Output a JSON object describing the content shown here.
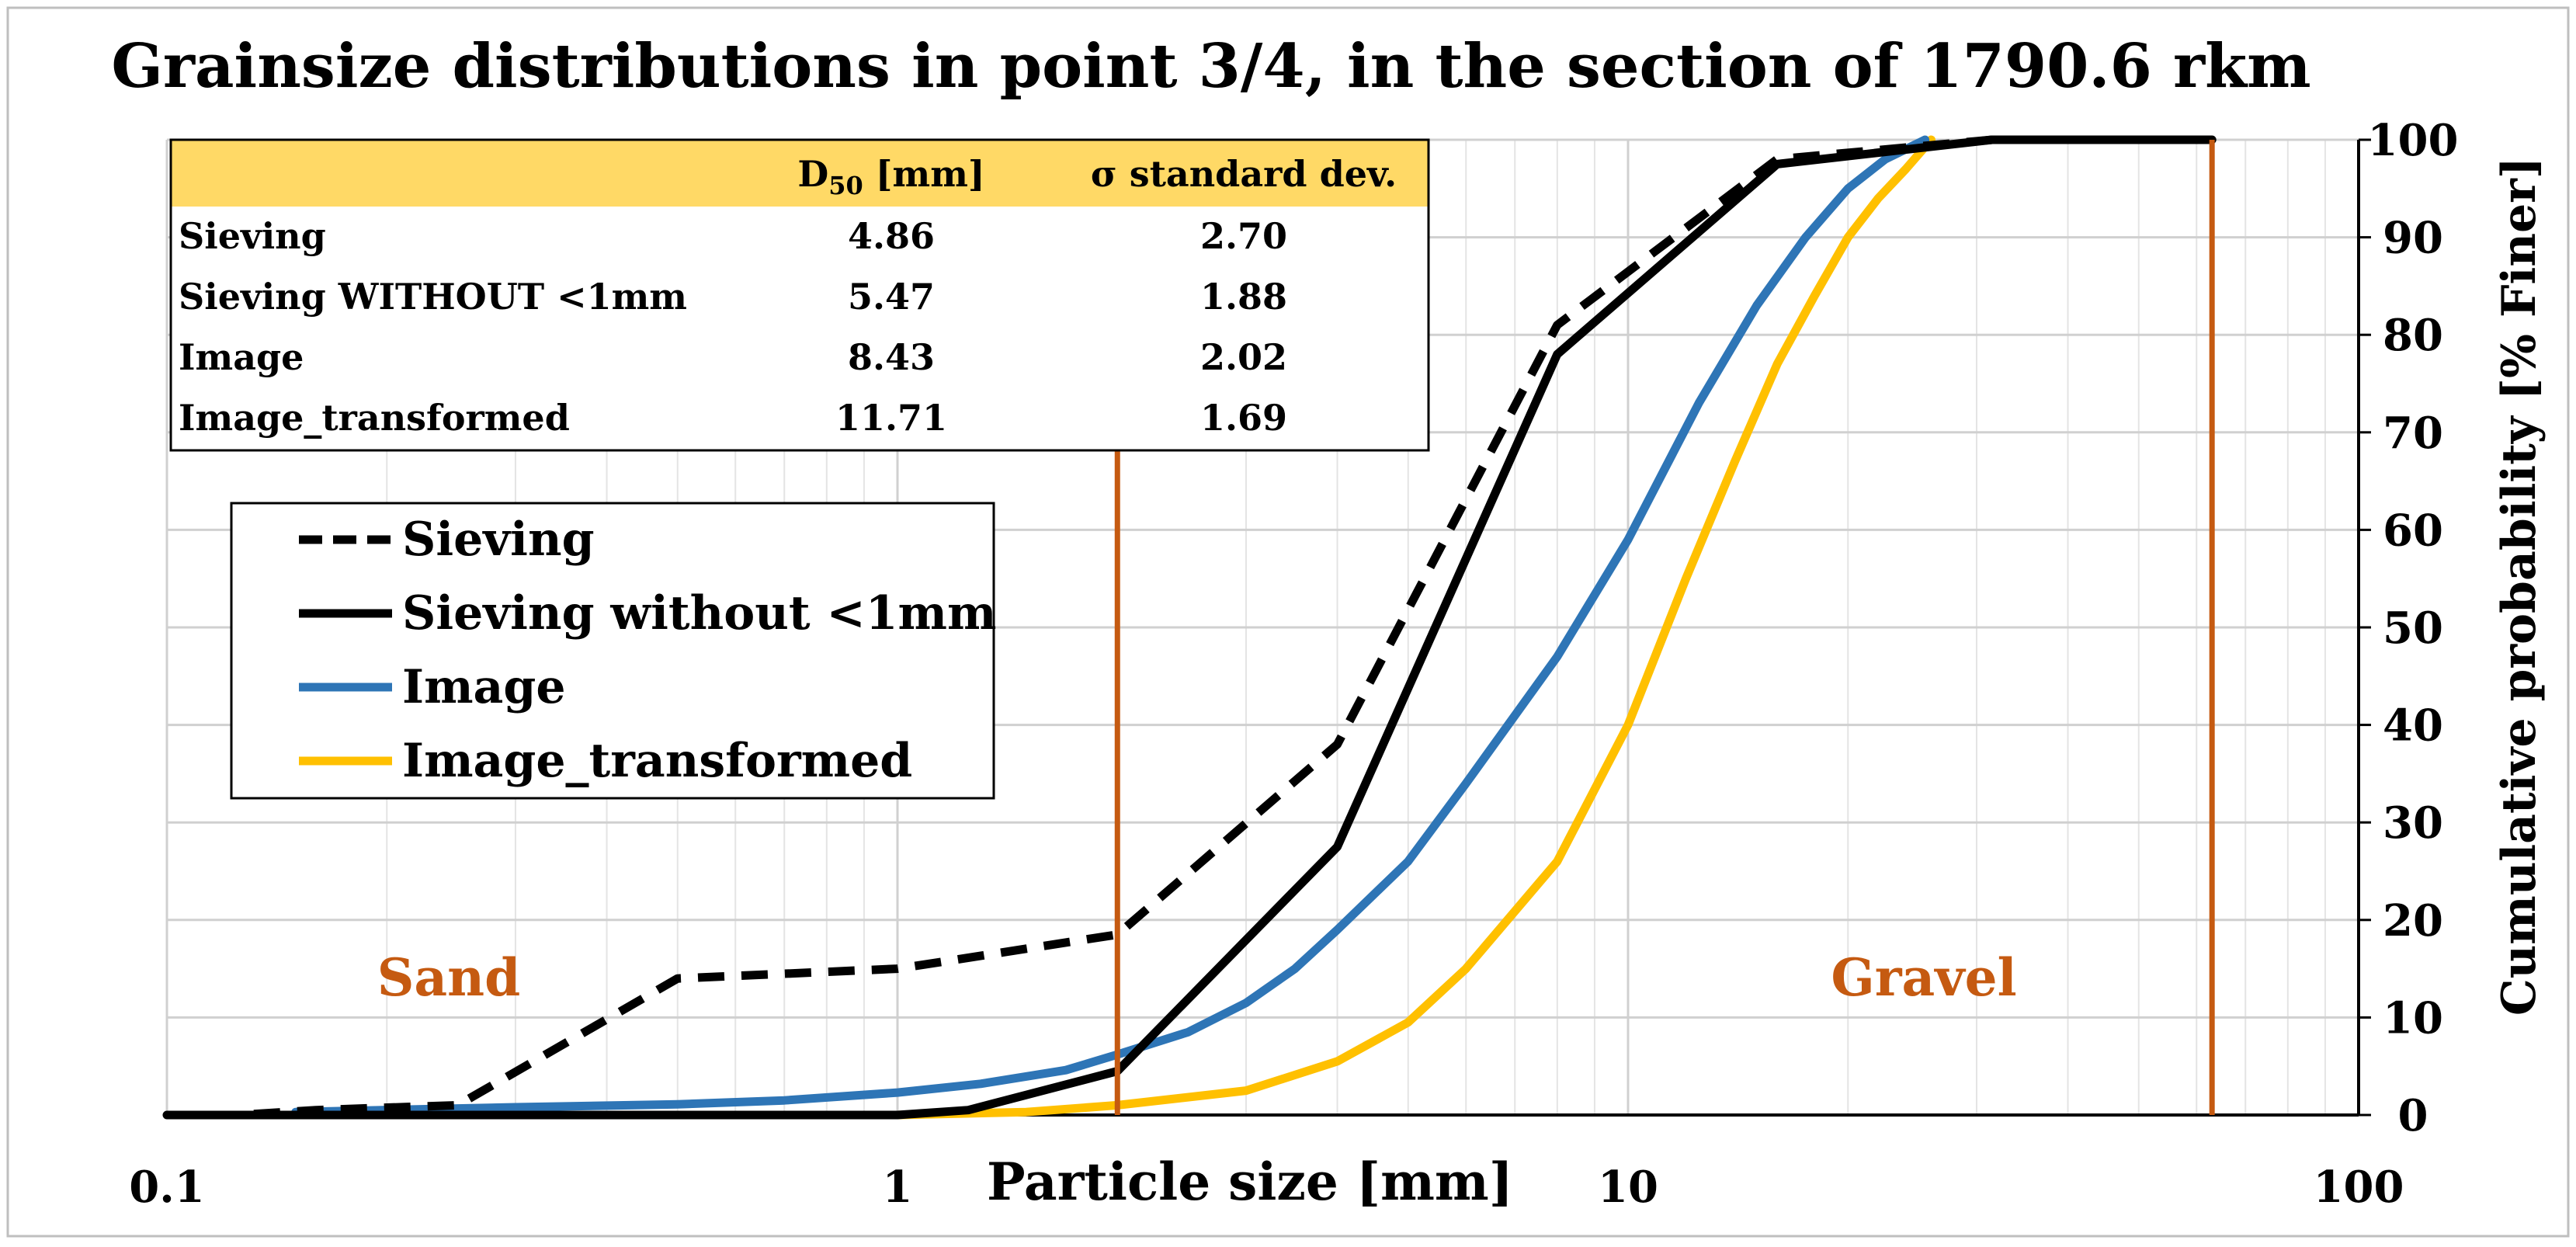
{
  "chart_data": {
    "type": "line",
    "title": "Grainsize distributions in point 3/4, in the section of 1790.6 rkm",
    "xlabel": "Particle size [mm]",
    "ylabel": "Cumulative probability [% Finer]",
    "x_scale": "log",
    "xlim": [
      0.1,
      100
    ],
    "ylim": [
      0,
      100
    ],
    "x_ticks": [
      0.1,
      1,
      10,
      100
    ],
    "x_tick_labels": [
      "0.1",
      "1",
      "10",
      "100"
    ],
    "y_ticks": [
      0,
      10,
      20,
      30,
      40,
      50,
      60,
      70,
      80,
      90,
      100
    ],
    "y_tick_labels": [
      "0",
      "10",
      "20",
      "30",
      "40",
      "50",
      "60",
      "70",
      "80",
      "90",
      "100"
    ],
    "y_axis_side": "right",
    "grid": true,
    "colors": {
      "Sieving": "#000000",
      "Sieving without <1mm": "#000000",
      "Image": "#2e75b6",
      "Image_transformed": "#ffc000",
      "boundary": "#c55a11",
      "table_header": "#ffd966"
    },
    "series": [
      {
        "name": "Sieving",
        "style": "dashed",
        "x": [
          0.1,
          0.125,
          0.16,
          0.25,
          0.5,
          1,
          2,
          4,
          8,
          16,
          31.5,
          63
        ],
        "y": [
          0,
          0,
          0.5,
          1,
          14,
          15,
          18.5,
          38,
          81,
          98,
          100,
          100
        ]
      },
      {
        "name": "Sieving without <1mm",
        "style": "solid",
        "x": [
          0.1,
          1,
          1.25,
          2,
          4,
          8,
          16,
          31.5,
          63
        ],
        "y": [
          0,
          0,
          0.5,
          4.5,
          27.5,
          78,
          97.5,
          100,
          100
        ]
      },
      {
        "name": "Image",
        "style": "solid",
        "x": [
          0.15,
          0.3,
          0.5,
          0.7,
          1,
          1.3,
          1.7,
          2,
          2.5,
          3,
          3.5,
          4,
          5,
          6,
          8,
          10,
          12.5,
          15,
          17.5,
          20,
          22.5,
          25.5
        ],
        "y": [
          0.3,
          0.8,
          1.1,
          1.5,
          2.3,
          3.2,
          4.6,
          6.2,
          8.5,
          11.5,
          15,
          19,
          26,
          34,
          47,
          59,
          73,
          83,
          90,
          95,
          98,
          100
        ]
      },
      {
        "name": "Image_transformed",
        "style": "solid",
        "x": [
          0.15,
          0.5,
          1,
          1.5,
          2,
          3,
          4,
          5,
          6,
          8,
          10,
          12,
          14,
          16,
          18,
          20,
          22,
          24,
          26
        ],
        "y": [
          0,
          0,
          0,
          0.3,
          1,
          2.5,
          5.5,
          9.5,
          15,
          26,
          40,
          55,
          67,
          77,
          84,
          90,
          94,
          97,
          100
        ]
      }
    ],
    "vertical_lines": [
      {
        "x": 2,
        "label": "Sand"
      },
      {
        "x": 63,
        "label": "Gravel"
      }
    ],
    "region_labels": [
      "Sand",
      "Gravel"
    ],
    "legend": [
      "Sieving",
      "Sieving without <1mm",
      "Image",
      "Image_transformed"
    ],
    "legend_position": "left",
    "stats_table": {
      "headers": [
        "",
        "D50 [mm]",
        "σ standard dev."
      ],
      "header_d50_main": "D",
      "header_d50_sub": "50",
      "header_d50_rest": " [mm]",
      "header_sigma": "σ standard dev.",
      "rows": [
        {
          "label": "Sieving",
          "d50": "4.86",
          "sigma": "2.70"
        },
        {
          "label": "Sieving WITHOUT <1mm",
          "d50": "5.47",
          "sigma": "1.88"
        },
        {
          "label": "Image",
          "d50": "8.43",
          "sigma": "2.02"
        },
        {
          "label": "Image_transformed",
          "d50": "11.71",
          "sigma": "1.69"
        }
      ]
    }
  }
}
